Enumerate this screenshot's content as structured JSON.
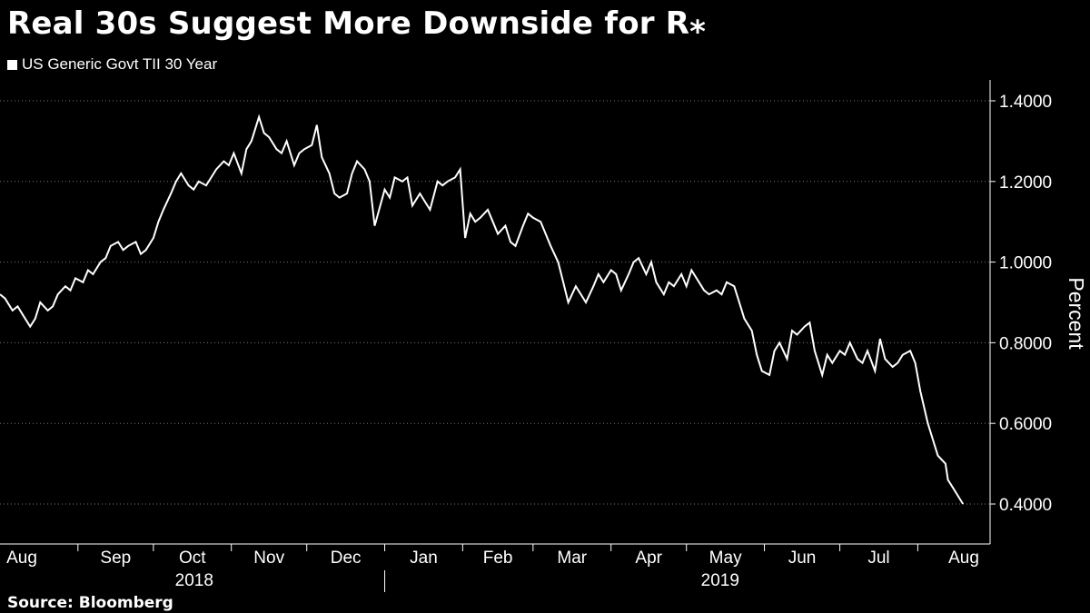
{
  "title": "Real 30s Suggest More Downside for R⁎",
  "legend": {
    "label": "US Generic Govt TII 30 Year",
    "color": "#ffffff"
  },
  "source": "Source:  Bloomberg",
  "chart_data": {
    "type": "line",
    "title": "Real 30s Suggest More Downside for R⁎",
    "ylabel": "Percent",
    "xlabel": "",
    "ylim": [
      0.3,
      1.45
    ],
    "yticks": [
      0.4,
      0.6,
      0.8,
      1.0,
      1.2,
      1.4
    ],
    "ytick_labels": [
      "0.4000",
      "0.6000",
      "0.8000",
      "1.0000",
      "1.2000",
      "1.4000"
    ],
    "grid": "horizontal dotted",
    "legend_position": "top-left",
    "months": [
      "Aug",
      "Sep",
      "Oct",
      "Nov",
      "Dec",
      "Jan",
      "Feb",
      "Mar",
      "Apr",
      "May",
      "Jun",
      "Jul",
      "Aug"
    ],
    "years": [
      "2018",
      "2019"
    ],
    "x_start": "2018-08-01",
    "x_end": "2019-08-20",
    "series": [
      {
        "name": "US Generic Govt TII 30 Year",
        "color": "#ffffff",
        "points": [
          [
            "2018-08-01",
            0.92
          ],
          [
            "2018-08-03",
            0.91
          ],
          [
            "2018-08-06",
            0.88
          ],
          [
            "2018-08-08",
            0.89
          ],
          [
            "2018-08-10",
            0.87
          ],
          [
            "2018-08-13",
            0.84
          ],
          [
            "2018-08-15",
            0.86
          ],
          [
            "2018-08-17",
            0.9
          ],
          [
            "2018-08-20",
            0.88
          ],
          [
            "2018-08-22",
            0.89
          ],
          [
            "2018-08-24",
            0.92
          ],
          [
            "2018-08-27",
            0.94
          ],
          [
            "2018-08-29",
            0.93
          ],
          [
            "2018-08-31",
            0.96
          ],
          [
            "2018-09-03",
            0.95
          ],
          [
            "2018-09-05",
            0.98
          ],
          [
            "2018-09-07",
            0.97
          ],
          [
            "2018-09-10",
            1.0
          ],
          [
            "2018-09-12",
            1.01
          ],
          [
            "2018-09-14",
            1.04
          ],
          [
            "2018-09-17",
            1.05
          ],
          [
            "2018-09-19",
            1.03
          ],
          [
            "2018-09-21",
            1.04
          ],
          [
            "2018-09-24",
            1.05
          ],
          [
            "2018-09-26",
            1.02
          ],
          [
            "2018-09-28",
            1.03
          ],
          [
            "2018-10-01",
            1.06
          ],
          [
            "2018-10-03",
            1.1
          ],
          [
            "2018-10-05",
            1.13
          ],
          [
            "2018-10-08",
            1.17
          ],
          [
            "2018-10-10",
            1.2
          ],
          [
            "2018-10-12",
            1.22
          ],
          [
            "2018-10-15",
            1.19
          ],
          [
            "2018-10-17",
            1.18
          ],
          [
            "2018-10-19",
            1.2
          ],
          [
            "2018-10-22",
            1.19
          ],
          [
            "2018-10-24",
            1.21
          ],
          [
            "2018-10-26",
            1.23
          ],
          [
            "2018-10-29",
            1.25
          ],
          [
            "2018-10-31",
            1.24
          ],
          [
            "2018-11-02",
            1.27
          ],
          [
            "2018-11-05",
            1.22
          ],
          [
            "2018-11-07",
            1.28
          ],
          [
            "2018-11-09",
            1.3
          ],
          [
            "2018-11-12",
            1.36
          ],
          [
            "2018-11-14",
            1.32
          ],
          [
            "2018-11-16",
            1.31
          ],
          [
            "2018-11-19",
            1.28
          ],
          [
            "2018-11-21",
            1.27
          ],
          [
            "2018-11-23",
            1.3
          ],
          [
            "2018-11-26",
            1.24
          ],
          [
            "2018-11-28",
            1.27
          ],
          [
            "2018-11-30",
            1.28
          ],
          [
            "2018-12-03",
            1.29
          ],
          [
            "2018-12-05",
            1.34
          ],
          [
            "2018-12-07",
            1.26
          ],
          [
            "2018-12-10",
            1.22
          ],
          [
            "2018-12-12",
            1.17
          ],
          [
            "2018-12-14",
            1.16
          ],
          [
            "2018-12-17",
            1.17
          ],
          [
            "2018-12-19",
            1.22
          ],
          [
            "2018-12-21",
            1.25
          ],
          [
            "2018-12-24",
            1.23
          ],
          [
            "2018-12-26",
            1.2
          ],
          [
            "2018-12-28",
            1.09
          ],
          [
            "2019-01-01",
            1.18
          ],
          [
            "2019-01-03",
            1.16
          ],
          [
            "2019-01-05",
            1.21
          ],
          [
            "2019-01-08",
            1.2
          ],
          [
            "2019-01-10",
            1.21
          ],
          [
            "2019-01-12",
            1.14
          ],
          [
            "2019-01-15",
            1.17
          ],
          [
            "2019-01-17",
            1.15
          ],
          [
            "2019-01-19",
            1.13
          ],
          [
            "2019-01-22",
            1.2
          ],
          [
            "2019-01-24",
            1.19
          ],
          [
            "2019-01-26",
            1.2
          ],
          [
            "2019-01-29",
            1.21
          ],
          [
            "2019-01-31",
            1.23
          ],
          [
            "2019-02-02",
            1.06
          ],
          [
            "2019-02-04",
            1.12
          ],
          [
            "2019-02-06",
            1.1
          ],
          [
            "2019-02-08",
            1.11
          ],
          [
            "2019-02-11",
            1.13
          ],
          [
            "2019-02-13",
            1.1
          ],
          [
            "2019-02-15",
            1.07
          ],
          [
            "2019-02-18",
            1.09
          ],
          [
            "2019-02-20",
            1.05
          ],
          [
            "2019-02-22",
            1.04
          ],
          [
            "2019-02-25",
            1.09
          ],
          [
            "2019-02-27",
            1.12
          ],
          [
            "2019-03-01",
            1.11
          ],
          [
            "2019-03-04",
            1.1
          ],
          [
            "2019-03-06",
            1.07
          ],
          [
            "2019-03-08",
            1.04
          ],
          [
            "2019-03-11",
            1.0
          ],
          [
            "2019-03-13",
            0.95
          ],
          [
            "2019-03-15",
            0.9
          ],
          [
            "2019-03-18",
            0.94
          ],
          [
            "2019-03-20",
            0.92
          ],
          [
            "2019-03-22",
            0.9
          ],
          [
            "2019-03-25",
            0.94
          ],
          [
            "2019-03-27",
            0.97
          ],
          [
            "2019-03-29",
            0.95
          ],
          [
            "2019-04-01",
            0.98
          ],
          [
            "2019-04-03",
            0.97
          ],
          [
            "2019-04-05",
            0.93
          ],
          [
            "2019-04-08",
            0.97
          ],
          [
            "2019-04-10",
            1.0
          ],
          [
            "2019-04-12",
            1.01
          ],
          [
            "2019-04-15",
            0.97
          ],
          [
            "2019-04-17",
            1.0
          ],
          [
            "2019-04-19",
            0.95
          ],
          [
            "2019-04-22",
            0.92
          ],
          [
            "2019-04-24",
            0.95
          ],
          [
            "2019-04-26",
            0.94
          ],
          [
            "2019-04-29",
            0.97
          ],
          [
            "2019-05-01",
            0.94
          ],
          [
            "2019-05-03",
            0.98
          ],
          [
            "2019-05-06",
            0.95
          ],
          [
            "2019-05-08",
            0.93
          ],
          [
            "2019-05-10",
            0.92
          ],
          [
            "2019-05-13",
            0.93
          ],
          [
            "2019-05-15",
            0.92
          ],
          [
            "2019-05-17",
            0.95
          ],
          [
            "2019-05-20",
            0.94
          ],
          [
            "2019-05-22",
            0.9
          ],
          [
            "2019-05-24",
            0.86
          ],
          [
            "2019-05-27",
            0.83
          ],
          [
            "2019-05-29",
            0.77
          ],
          [
            "2019-05-31",
            0.73
          ],
          [
            "2019-06-03",
            0.72
          ],
          [
            "2019-06-05",
            0.78
          ],
          [
            "2019-06-07",
            0.8
          ],
          [
            "2019-06-10",
            0.76
          ],
          [
            "2019-06-12",
            0.83
          ],
          [
            "2019-06-14",
            0.82
          ],
          [
            "2019-06-17",
            0.84
          ],
          [
            "2019-06-19",
            0.85
          ],
          [
            "2019-06-21",
            0.78
          ],
          [
            "2019-06-24",
            0.72
          ],
          [
            "2019-06-26",
            0.77
          ],
          [
            "2019-06-28",
            0.75
          ],
          [
            "2019-07-01",
            0.78
          ],
          [
            "2019-07-03",
            0.77
          ],
          [
            "2019-07-05",
            0.8
          ],
          [
            "2019-07-08",
            0.76
          ],
          [
            "2019-07-10",
            0.75
          ],
          [
            "2019-07-12",
            0.78
          ],
          [
            "2019-07-15",
            0.73
          ],
          [
            "2019-07-17",
            0.81
          ],
          [
            "2019-07-19",
            0.76
          ],
          [
            "2019-07-22",
            0.74
          ],
          [
            "2019-07-24",
            0.75
          ],
          [
            "2019-07-26",
            0.77
          ],
          [
            "2019-07-29",
            0.78
          ],
          [
            "2019-07-31",
            0.75
          ],
          [
            "2019-08-02",
            0.68
          ],
          [
            "2019-08-05",
            0.6
          ],
          [
            "2019-08-07",
            0.56
          ],
          [
            "2019-08-09",
            0.52
          ],
          [
            "2019-08-12",
            0.5
          ],
          [
            "2019-08-13",
            0.46
          ],
          [
            "2019-08-15",
            0.44
          ],
          [
            "2019-08-17",
            0.42
          ],
          [
            "2019-08-19",
            0.4
          ]
        ]
      }
    ]
  }
}
